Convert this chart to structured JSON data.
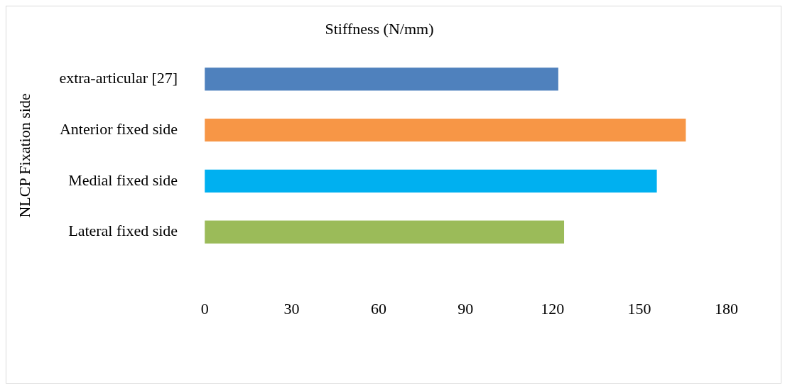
{
  "chart_data": {
    "type": "bar",
    "orientation": "horizontal",
    "title": "Stiffness (N/mm)",
    "ylabel": "NLCP Fixation side",
    "categories": [
      "extra-articular [27]",
      "Anterior fixed side",
      "Medial fixed side",
      "Lateral fixed side"
    ],
    "values": [
      122,
      166,
      156,
      124
    ],
    "colors": [
      "#4f81bd",
      "#f79646",
      "#00b0f0",
      "#9bbb59"
    ],
    "xlim": [
      0,
      180
    ],
    "xticks": [
      0,
      30,
      60,
      90,
      120,
      150,
      180
    ],
    "grid": false,
    "legend": false
  }
}
